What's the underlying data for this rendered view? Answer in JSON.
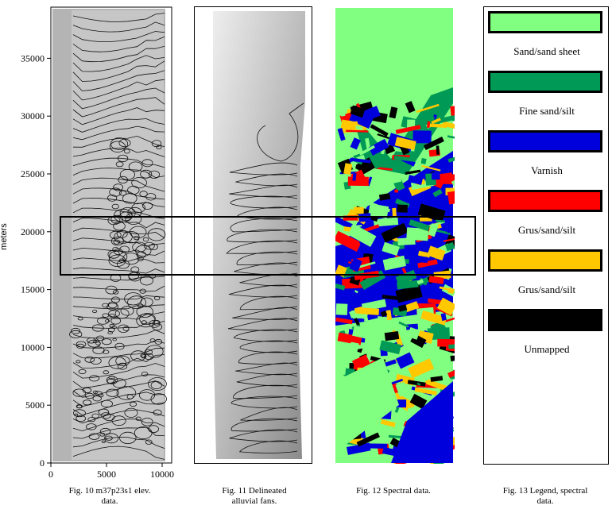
{
  "fig10": {
    "ylabel": "meters",
    "yticks": [
      "0",
      "5000",
      "10000",
      "15000",
      "20000",
      "25000",
      "30000",
      "35000"
    ],
    "xticks": [
      "0",
      "5000",
      "10000"
    ],
    "caption_line1": "Fig. 10 m37p23s1 elev.",
    "caption_line2": "data."
  },
  "fig11": {
    "caption_line1": "Fig. 11 Delineated",
    "caption_line2": "alluvial fans."
  },
  "fig12": {
    "caption_line1": "Fig. 12 Spectral data."
  },
  "fig13": {
    "caption_line1": "Fig. 13 Legend, spectral",
    "caption_line2": "data."
  },
  "legend": [
    {
      "label": "Sand/sand sheet",
      "color": "#80ff80"
    },
    {
      "label": "Fine sand/silt",
      "color": "#009955"
    },
    {
      "label": "Varnish",
      "color": "#0000dd"
    },
    {
      "label": "Grus/sand/silt",
      "color": "#ff0000"
    },
    {
      "label": "Grus/sand/silt",
      "color": "#ffc800"
    },
    {
      "label": "Unmapped",
      "color": "#000000"
    }
  ]
}
